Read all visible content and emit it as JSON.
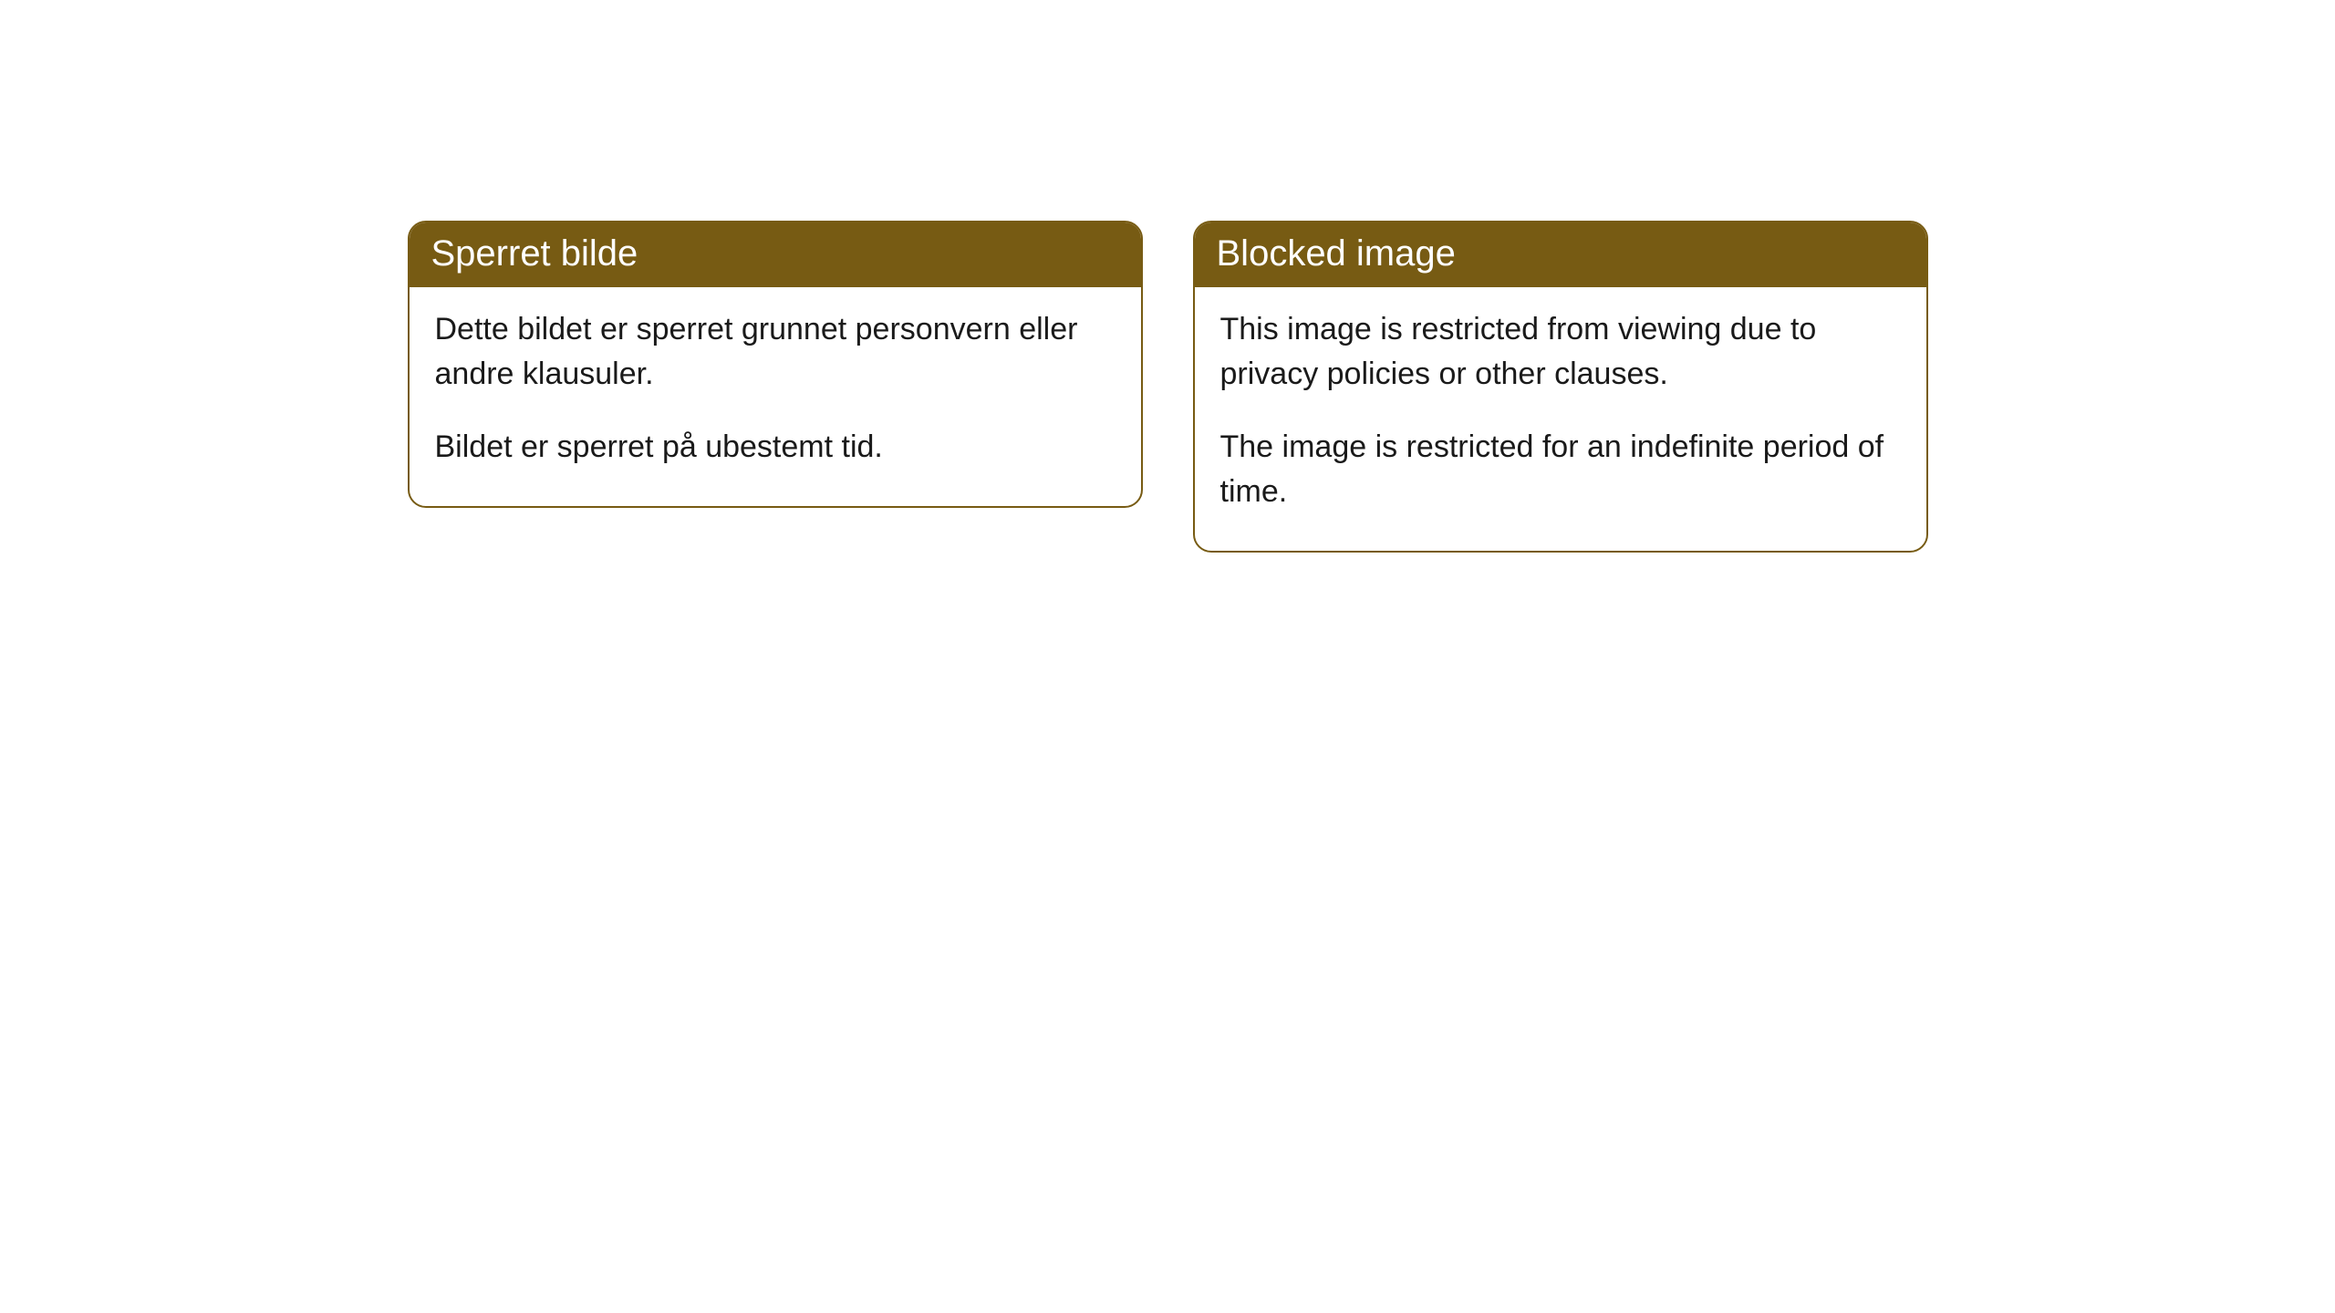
{
  "cards": [
    {
      "title": "Sperret bilde",
      "paragraph1": "Dette bildet er sperret grunnet personvern eller andre klausuler.",
      "paragraph2": "Bildet er sperret på ubestemt tid."
    },
    {
      "title": "Blocked image",
      "paragraph1": "This image is restricted from viewing due to privacy policies or other clauses.",
      "paragraph2": "The image is restricted for an indefinite period of time."
    }
  ],
  "style": {
    "header_background": "#775b13",
    "header_text_color": "#ffffff",
    "border_color": "#775b13",
    "body_background": "#ffffff",
    "body_text_color": "#1a1a1a",
    "border_radius": 20,
    "title_fontsize": 40,
    "body_fontsize": 34
  }
}
